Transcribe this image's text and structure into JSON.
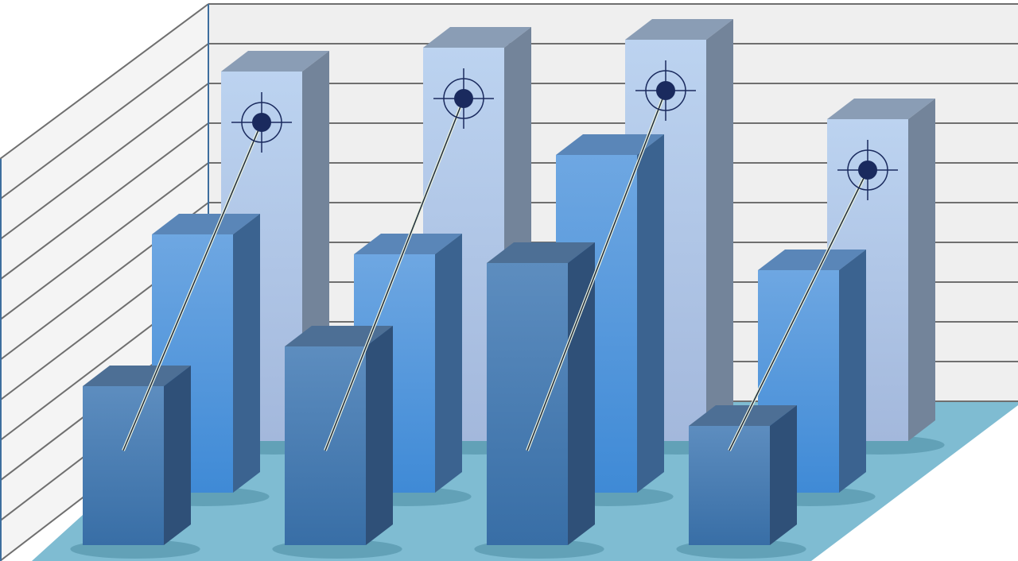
{
  "chart_data": {
    "type": "bar",
    "style": "3d-clustered",
    "categories": [
      "",
      "",
      "",
      ""
    ],
    "series": [
      {
        "values": [
          9.3,
          9.9,
          10.1,
          8.1
        ],
        "color": "#b3cdec",
        "marker": "crosshair-target"
      },
      {
        "values": [
          6.5,
          6.0,
          8.5,
          5.6
        ],
        "color": "#5b9be0"
      },
      {
        "values": [
          4.0,
          5.0,
          7.1,
          3.0
        ],
        "color": "#4a7fb5"
      }
    ],
    "ylim": [
      0,
      10
    ],
    "grid": true,
    "legend": "none",
    "colors": {
      "wall": "#efefef",
      "grid": "#6f6f6f",
      "floor": "#7fbcd2",
      "target": "#1a2a5e"
    }
  }
}
